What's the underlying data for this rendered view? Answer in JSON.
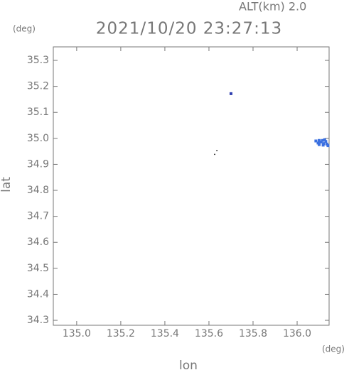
{
  "chart_data": {
    "type": "scatter",
    "title": "2021/10/20 23:27:13",
    "altitude_label": "ALT(km) 2.0",
    "y_unit": "(deg)",
    "x_unit": "(deg)",
    "xlabel": "lon",
    "ylabel": "lat",
    "xlim": [
      134.894,
      136.145
    ],
    "ylim": [
      34.281,
      35.352
    ],
    "xticks": [
      {
        "value": 135,
        "label": "135.0"
      },
      135.2,
      135.4,
      135.6,
      135.8,
      {
        "value": 136,
        "label": "136.0"
      }
    ],
    "yticks": [
      34.3,
      34.4,
      34.5,
      34.6,
      34.7,
      34.8,
      34.9,
      {
        "value": 35,
        "label": "35.0"
      },
      35.1,
      35.2,
      35.3
    ],
    "series": [
      {
        "color": "#3a6fe0",
        "x": [
          136.085,
          136.095,
          136.1,
          136.108,
          136.115,
          136.12,
          136.125,
          136.13,
          136.135,
          136.14,
          136.1,
          136.118
        ],
        "values": [
          34.99,
          34.982,
          34.976,
          34.986,
          34.992,
          34.98,
          34.995,
          34.988,
          34.978,
          34.972,
          34.992,
          34.974
        ]
      },
      {
        "color": "#3040b0",
        "x": [
          135.7
        ],
        "values": [
          35.172
        ]
      },
      {
        "color": "#000000",
        "x": [
          135.64,
          135.63
        ],
        "values": [
          34.95,
          34.935
        ]
      }
    ]
  }
}
